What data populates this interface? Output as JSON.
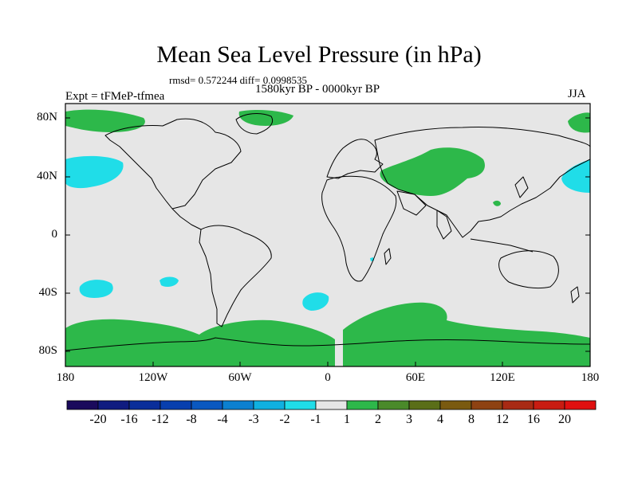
{
  "title": "Mean Sea Level Pressure (in hPa)",
  "stats": "rmsd= 0.572244 diff= 0.0998535",
  "period": "1580kyr BP - 0000kyr BP",
  "experiment": "Expt = tFMeP-tfmea",
  "season": "JJA",
  "axes": {
    "y_ticks": [
      "80N",
      "40N",
      "0",
      "40S",
      "80S"
    ],
    "x_ticks": [
      "180",
      "120W",
      "60W",
      "0",
      "60E",
      "120E",
      "180"
    ]
  },
  "colorbar": {
    "labels": [
      "-20",
      "-16",
      "-12",
      "-8",
      "-4",
      "-3",
      "-2",
      "-1",
      "1",
      "2",
      "3",
      "4",
      "8",
      "12",
      "16",
      "20"
    ],
    "colors": [
      "#1a0a5c",
      "#101c80",
      "#0a2e9a",
      "#083fae",
      "#0a58c0",
      "#0c80d0",
      "#10b0e0",
      "#20dde8",
      "#e6e6e6",
      "#2db84a",
      "#4a8a2a",
      "#5a6e18",
      "#7a5a10",
      "#8e4212",
      "#a82a14",
      "#c81c12",
      "#e01010"
    ]
  },
  "map_colors": {
    "ocean_background": "#e6e6e6",
    "positive_anomaly": "#2db84a",
    "negative_anomaly": "#20dde8",
    "coastline": "#000000"
  }
}
